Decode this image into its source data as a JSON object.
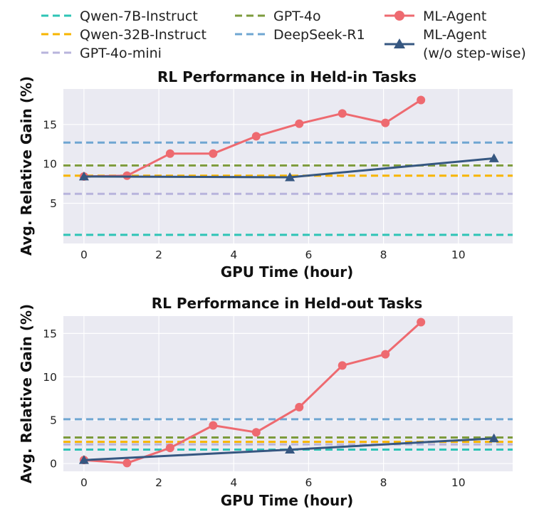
{
  "legend": [
    {
      "label": "Qwen-7B-Instruct",
      "color": "#2ec4b6",
      "style": "dashed"
    },
    {
      "label": "Qwen-32B-Instruct",
      "color": "#f7b500",
      "style": "dashed"
    },
    {
      "label": "GPT-4o-mini",
      "color": "#b8b4dc",
      "style": "dashed"
    },
    {
      "label": "GPT-4o",
      "color": "#7d9b3c",
      "style": "dashed"
    },
    {
      "label": "DeepSeek-R1",
      "color": "#6fa6d2",
      "style": "dashed"
    },
    {
      "label": "ML-Agent",
      "color": "#ee6a70",
      "style": "line-circle"
    },
    {
      "label": "ML-Agent",
      "label2": "(w/o step-wise)",
      "color": "#365781",
      "style": "line-triangle"
    }
  ],
  "chart_data": [
    {
      "type": "line",
      "title": "RL Performance in Held-in Tasks",
      "xlabel": "GPU Time (hour)",
      "ylabel": "Avg. Relative Gain (%)",
      "xlim": [
        -0.55,
        11.45
      ],
      "ylim": [
        -0.1,
        19.5
      ],
      "xticks": [
        0,
        2,
        4,
        6,
        8,
        10
      ],
      "yticks": [
        5,
        10,
        15
      ],
      "baselines": [
        {
          "name": "Qwen-7B-Instruct",
          "value": 1.0
        },
        {
          "name": "Qwen-32B-Instruct",
          "value": 8.5
        },
        {
          "name": "GPT-4o-mini",
          "value": 6.2
        },
        {
          "name": "GPT-4o",
          "value": 9.8
        },
        {
          "name": "DeepSeek-R1",
          "value": 12.7
        }
      ],
      "series": [
        {
          "name": "ML-Agent",
          "x": [
            0,
            1.15,
            2.3,
            3.45,
            4.6,
            5.75,
            6.9,
            8.05,
            9.0
          ],
          "y": [
            8.4,
            8.5,
            11.3,
            11.3,
            13.5,
            15.1,
            16.4,
            15.2,
            18.1
          ]
        },
        {
          "name": "ML-Agent (w/o step-wise)",
          "x": [
            0,
            5.5,
            10.95
          ],
          "y": [
            8.4,
            8.3,
            10.7
          ]
        }
      ]
    },
    {
      "type": "line",
      "title": "RL Performance in Held-out Tasks",
      "xlabel": "GPU Time (hour)",
      "ylabel": "Avg. Relative Gain (%)",
      "xlim": [
        -0.55,
        11.45
      ],
      "ylim": [
        -0.9,
        17.0
      ],
      "xticks": [
        0,
        2,
        4,
        6,
        8,
        10
      ],
      "yticks": [
        0,
        5,
        10,
        15
      ],
      "baselines": [
        {
          "name": "Qwen-7B-Instruct",
          "value": 1.6
        },
        {
          "name": "Qwen-32B-Instruct",
          "value": 2.5
        },
        {
          "name": "GPT-4o-mini",
          "value": 2.2
        },
        {
          "name": "GPT-4o",
          "value": 3.0
        },
        {
          "name": "DeepSeek-R1",
          "value": 5.1
        }
      ],
      "series": [
        {
          "name": "ML-Agent",
          "x": [
            0,
            1.15,
            2.3,
            3.45,
            4.6,
            5.75,
            6.9,
            8.05,
            9.0
          ],
          "y": [
            0.4,
            0.05,
            1.8,
            4.4,
            3.6,
            6.5,
            11.3,
            12.6,
            16.3
          ]
        },
        {
          "name": "ML-Agent (w/o step-wise)",
          "x": [
            0,
            5.5,
            10.95
          ],
          "y": [
            0.4,
            1.6,
            2.9
          ]
        }
      ]
    }
  ]
}
